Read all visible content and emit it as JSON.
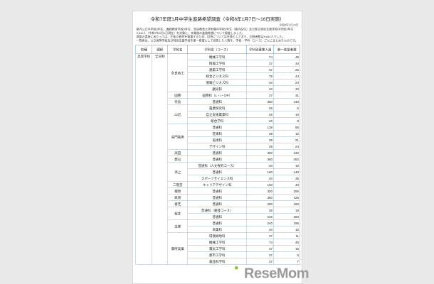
{
  "page": {
    "title": "令和7年度1月中学生進路希望調査（令和8年1月7日～16日実施）",
    "date_note": "令和8年1月23日",
    "intro_lines": [
      "県内公立中学校3年生、義務教育学校9年生、奈良教育大学附属中学校3年生（県内在住）及び県立特別支援学校中学部3年生",
      "9,642人（令和7年5月1日現在）を対象に、卒業後の進路希望について調査しました。",
      "調査の実施にあたっては、生徒の意思を尊重するため、回答については任意としており、回答者数は9,604人でした。",
      "一覧表は、公立高等学校及び特別支援学校を第一希望として回答した人数を、学校・学科（コース）ごとにまとめたものです。"
    ],
    "watermark": "ReseMom"
  },
  "table": {
    "headers": [
      "校種",
      "課程",
      "学校名",
      "学科名（コース）",
      "学科別募集人員",
      "第一希望者数"
    ],
    "school_type": "高等学校",
    "course_type": "全日制",
    "schools": [
      {
        "name": "奈良商工",
        "rows": [
          {
            "dept": "機械工学科",
            "capacity": "74",
            "first_choice": "49"
          },
          {
            "dept": "情報工学科",
            "capacity": "37",
            "first_choice": "34"
          },
          {
            "dept": "建築工学科",
            "capacity": "37",
            "first_choice": "25"
          },
          {
            "dept": "総合ビジネス科",
            "capacity": "78",
            "first_choice": "44"
          },
          {
            "dept": "情報ビジネス科",
            "capacity": "40",
            "first_choice": "24"
          },
          {
            "dept": "観光科",
            "capacity": "40",
            "first_choice": "30"
          }
        ]
      },
      {
        "name": "国際",
        "rows": [
          {
            "dept": "国際科（L・I・DP）",
            "capacity": "37",
            "first_choice": "31"
          }
        ]
      },
      {
        "name": "奈良",
        "rows": [
          {
            "dept": "普通科",
            "capacity": "360",
            "first_choice": "440"
          }
        ]
      },
      {
        "name": "山辺",
        "rows": [
          {
            "dept": "農業探究科",
            "capacity": "26",
            "first_choice": "5"
          },
          {
            "dept": "自立支援農業科",
            "capacity": "26",
            "first_choice": "10"
          },
          {
            "dept": "総合学科",
            "capacity": "40",
            "first_choice": "8"
          }
        ]
      },
      {
        "name": "高円芸術",
        "rows": [
          {
            "dept": "普通科",
            "capacity": "138",
            "first_choice": "95"
          },
          {
            "dept": "音楽科",
            "capacity": "38",
            "first_choice": "12"
          },
          {
            "dept": "美術科",
            "capacity": "38",
            "first_choice": "21"
          },
          {
            "dept": "デザイン科",
            "capacity": "38",
            "first_choice": "24"
          }
        ]
      },
      {
        "name": "高田",
        "rows": [
          {
            "dept": "普通科",
            "capacity": "360",
            "first_choice": "342"
          }
        ]
      },
      {
        "name": "郡山",
        "rows": [
          {
            "dept": "普通科",
            "capacity": "360",
            "first_choice": "452"
          }
        ]
      },
      {
        "name": "添上",
        "rows": [
          {
            "dept": "普通科（人文探究コース）",
            "capacity": "40",
            "first_choice": "19"
          },
          {
            "dept": "普通科",
            "capacity": "160",
            "first_choice": "140"
          },
          {
            "dept": "スポーツサイエンス科",
            "capacity": "40",
            "first_choice": "35"
          }
        ]
      },
      {
        "name": "二階堂",
        "rows": [
          {
            "dept": "キャリアデザイン科",
            "capacity": "160",
            "first_choice": "40"
          }
        ]
      },
      {
        "name": "橿原",
        "rows": [
          {
            "dept": "普通科",
            "capacity": "320",
            "first_choice": "256"
          }
        ]
      },
      {
        "name": "畝傍",
        "rows": [
          {
            "dept": "普通科",
            "capacity": "360",
            "first_choice": "425"
          }
        ]
      },
      {
        "name": "香芝",
        "rows": [
          {
            "dept": "普通科",
            "capacity": "280",
            "first_choice": "190"
          }
        ]
      },
      {
        "name": "桜井",
        "rows": [
          {
            "dept": "普通科（書芸コース）",
            "capacity": "35",
            "first_choice": "19"
          },
          {
            "dept": "普通科",
            "capacity": "245",
            "first_choice": "260"
          }
        ]
      },
      {
        "name": "五條",
        "rows": [
          {
            "dept": "普通科",
            "capacity": "240",
            "first_choice": "195"
          },
          {
            "dept": "商業科",
            "capacity": "40",
            "first_choice": "15"
          }
        ]
      },
      {
        "name": "御所実業",
        "rows": [
          {
            "dept": "環境緑地科",
            "capacity": "37",
            "first_choice": "11"
          },
          {
            "dept": "機械工学科",
            "capacity": "74",
            "first_choice": "45"
          },
          {
            "dept": "電気工学科",
            "capacity": "37",
            "first_choice": "15"
          },
          {
            "dept": "都市工学科",
            "capacity": "37",
            "first_choice": "5"
          },
          {
            "dept": "薬品科学科",
            "capacity": "37",
            "first_choice": "7"
          }
        ]
      }
    ]
  },
  "colors": {
    "background": "#e9e9e9",
    "page": "#ffffff",
    "table_header_border": "#4d9fbe",
    "table_inner_border": "#9fb9c6",
    "watermark_gray": "#9b9b9b",
    "watermark_green": "#8dc21f"
  }
}
